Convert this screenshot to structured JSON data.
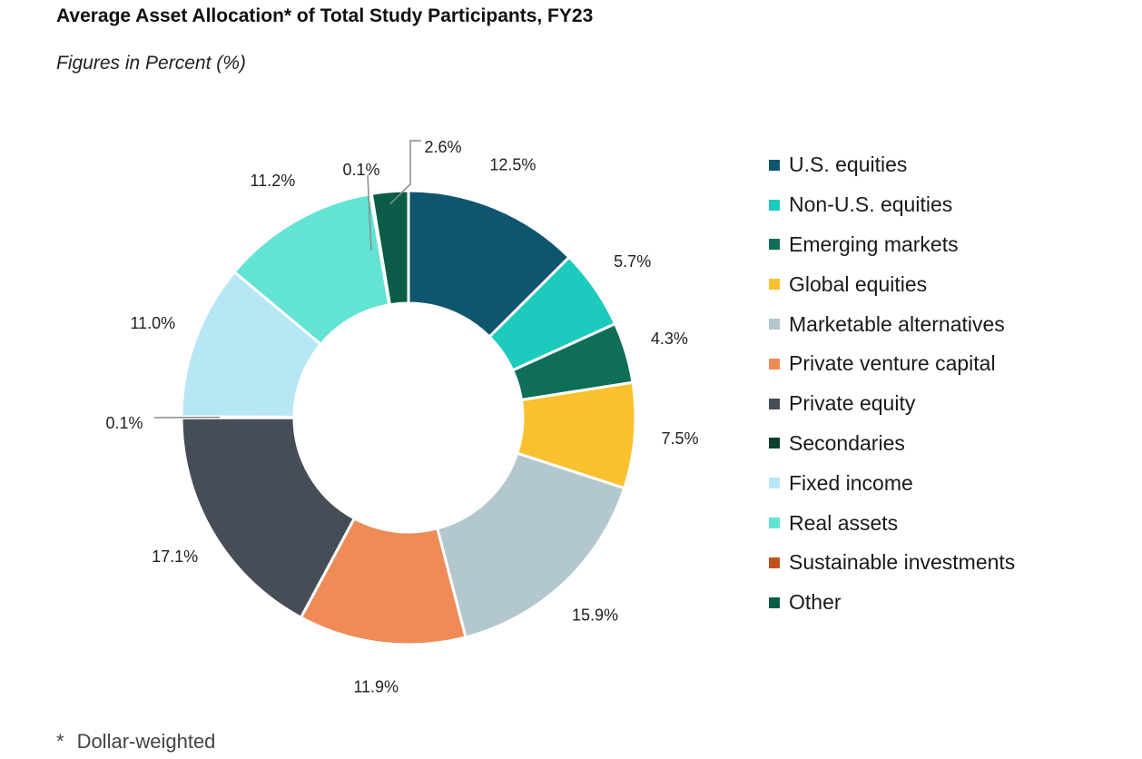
{
  "chart_data": {
    "type": "donut",
    "title": "Average Asset Allocation* of Total Study Participants, FY23",
    "subtitle": "Figures in Percent (%)",
    "footnote_marker": "*",
    "footnote": "Dollar-weighted",
    "legend_position": "right",
    "slices": [
      {
        "name": "U.S. equities",
        "value": 12.5,
        "label": "12.5%",
        "color": "#0f556e"
      },
      {
        "name": "Non-U.S. equities",
        "value": 5.7,
        "label": "5.7%",
        "color": "#1ccbbd"
      },
      {
        "name": "Emerging markets",
        "value": 4.3,
        "label": "4.3%",
        "color": "#0e6e57"
      },
      {
        "name": "Global equities",
        "value": 7.5,
        "label": "7.5%",
        "color": "#f9c12f"
      },
      {
        "name": "Marketable alternatives",
        "value": 15.9,
        "label": "15.9%",
        "color": "#b2c7ce"
      },
      {
        "name": "Private venture capital",
        "value": 11.9,
        "label": "11.9%",
        "color": "#ee8b57"
      },
      {
        "name": "Private equity",
        "value": 17.1,
        "label": "17.1%",
        "color": "#464d57"
      },
      {
        "name": "Secondaries",
        "value": 0.1,
        "label": "0.1%",
        "color": "#0b3f30"
      },
      {
        "name": "Fixed income",
        "value": 11.0,
        "label": "11.0%",
        "color": "#b7e7f5"
      },
      {
        "name": "Real assets",
        "value": 11.2,
        "label": "11.2%",
        "color": "#62e3d3"
      },
      {
        "name": "Sustainable investments",
        "value": 0.1,
        "label": "0.1%",
        "color": "#c0521d"
      },
      {
        "name": "Other",
        "value": 2.6,
        "label": "2.6%",
        "color": "#0b5c48"
      }
    ]
  }
}
